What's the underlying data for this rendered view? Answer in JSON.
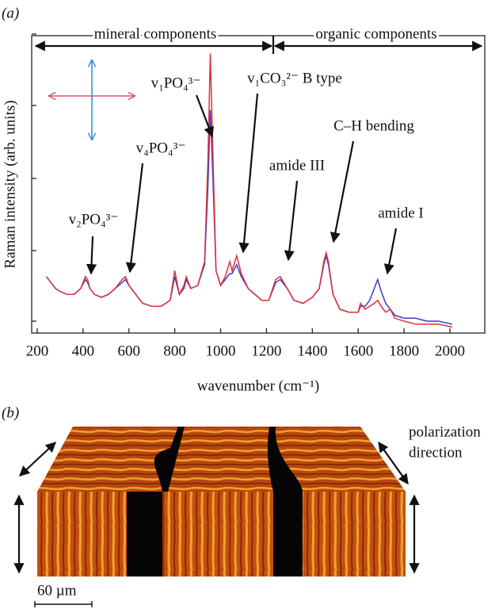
{
  "chart_data": {
    "type": "line",
    "panel_label": "(a)",
    "ylabel": "Raman intensity (arb. units)",
    "xlabel": "wavenumber (cm⁻¹)",
    "regions": [
      "mineral components",
      "organic components"
    ],
    "annotations": [
      "v₂PO₄³⁻",
      "v₄PO₄³⁻",
      "v₁PO₄³⁻",
      "v₁CO₃²⁻ B type",
      "amide III",
      "C–H bending",
      "amide I"
    ],
    "xlim": [
      176,
      2152
    ],
    "xticks": [
      200,
      400,
      600,
      800,
      1000,
      1200,
      1400,
      1600,
      1800,
      2000
    ],
    "ylim": [
      0,
      100
    ],
    "x": [
      240,
      260,
      280,
      300,
      330,
      360,
      390,
      410,
      420,
      430,
      450,
      480,
      510,
      540,
      570,
      585,
      600,
      630,
      660,
      700,
      740,
      780,
      800,
      810,
      820,
      840,
      850,
      870,
      900,
      930,
      945,
      955,
      965,
      980,
      1000,
      1020,
      1040,
      1050,
      1070,
      1090,
      1120,
      1150,
      1180,
      1210,
      1240,
      1260,
      1290,
      1320,
      1360,
      1400,
      1430,
      1450,
      1460,
      1470,
      1490,
      1520,
      1560,
      1600,
      1610,
      1630,
      1650,
      1670,
      1685,
      1700,
      1720,
      1740,
      1760,
      1800,
      1850,
      1900,
      1950,
      2010
    ],
    "series": [
      {
        "color": "#3a40c0",
        "values": [
          19,
          17,
          15,
          14,
          13,
          13,
          15,
          18,
          17,
          15,
          13,
          12,
          13,
          15,
          17,
          18,
          16,
          13,
          10,
          9,
          9,
          11,
          19,
          16,
          13,
          15,
          18,
          15,
          16,
          23,
          50,
          75,
          55,
          21,
          16,
          18,
          20,
          20,
          23,
          19,
          15,
          13,
          11,
          11,
          17,
          18,
          15,
          11,
          10,
          12,
          15,
          23,
          26,
          23,
          13,
          8,
          7,
          7,
          9,
          9,
          11,
          15,
          18,
          14,
          10,
          8,
          6,
          5,
          5,
          4,
          4,
          3
        ]
      },
      {
        "color": "#e0303a",
        "values": [
          19,
          17,
          15,
          14,
          13,
          13,
          15,
          19,
          18,
          15,
          13,
          12,
          13,
          15,
          18,
          19,
          16,
          13,
          10,
          9,
          9,
          11,
          21,
          17,
          13,
          16,
          19,
          15,
          16,
          24,
          59,
          94,
          64,
          21,
          16,
          19,
          24,
          21,
          26,
          20,
          15,
          13,
          11,
          11,
          18,
          19,
          15,
          11,
          10,
          12,
          15,
          24,
          27,
          24,
          13,
          8,
          7,
          7,
          10,
          8,
          9,
          10,
          11,
          9,
          7,
          8,
          5,
          4,
          3,
          3,
          3,
          2
        ]
      }
    ]
  },
  "panel_b": {
    "panel_label": "(b)",
    "polarization": [
      "polarization",
      "direction"
    ],
    "scale_bar": "60 µm"
  }
}
